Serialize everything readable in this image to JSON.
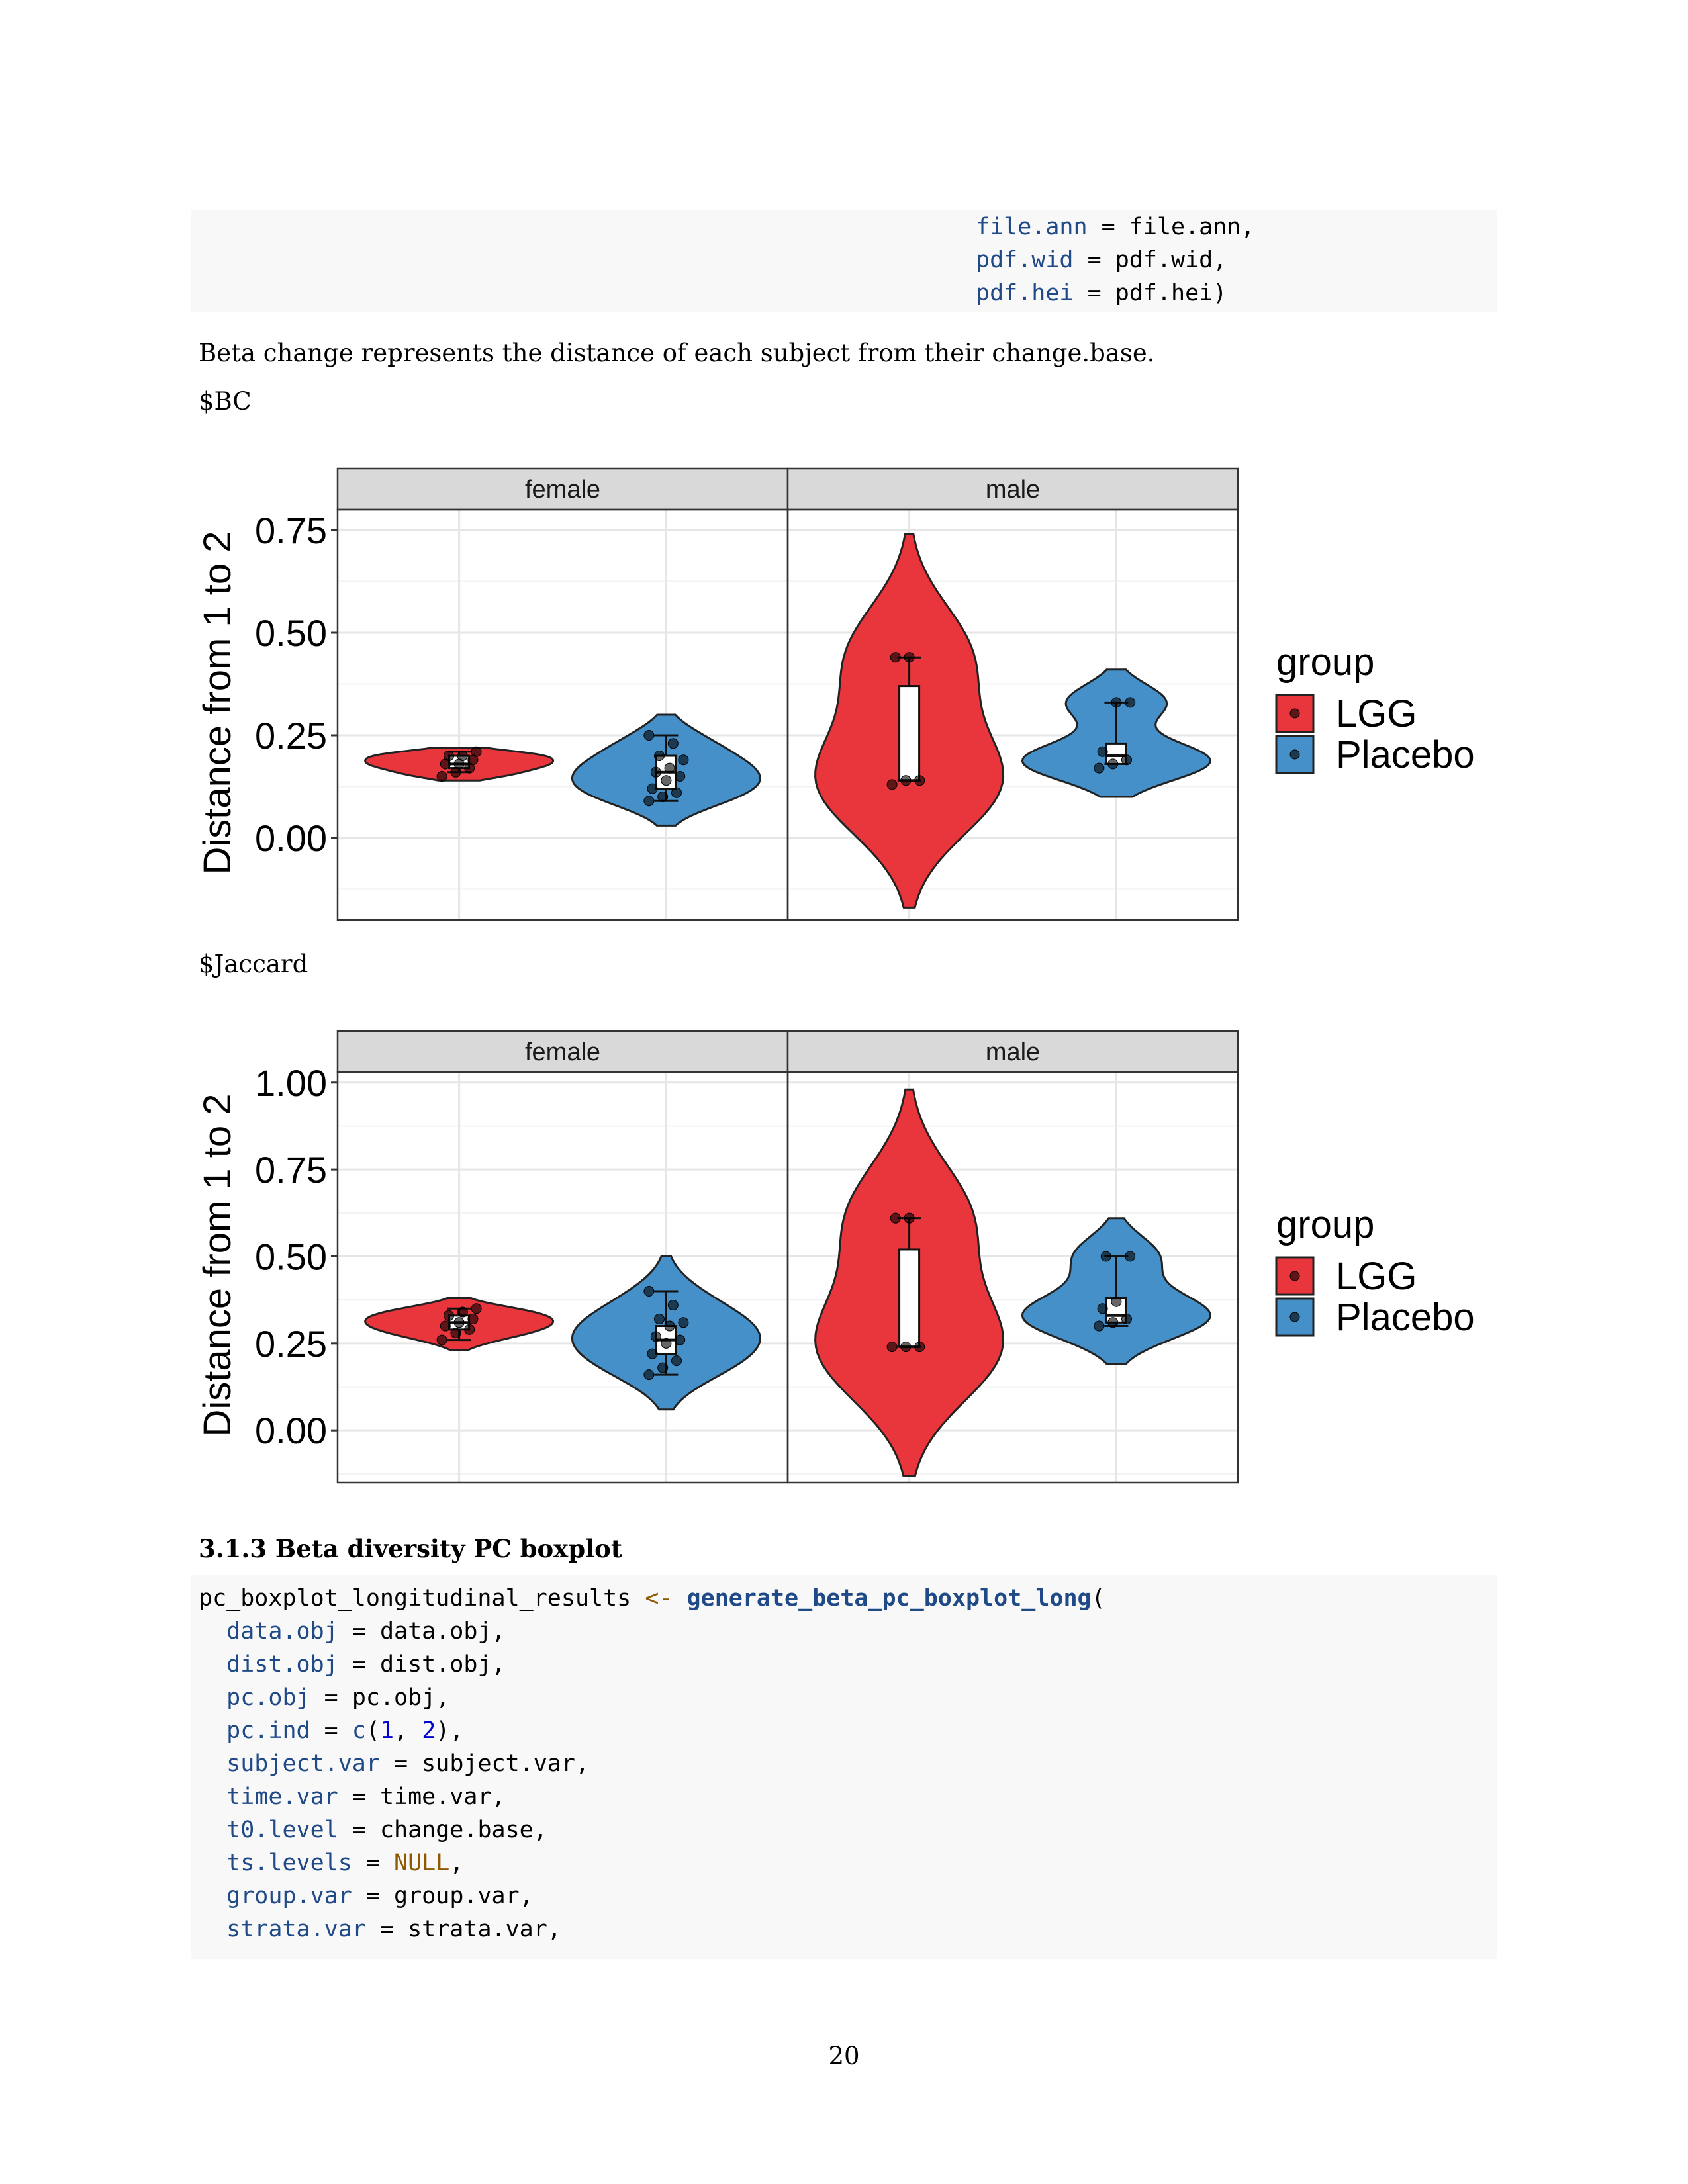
{
  "code_top": {
    "lines": [
      {
        "arg": "file.ann",
        "value": "file.ann,"
      },
      {
        "arg": "pdf.wid",
        "value": "pdf.wid,"
      },
      {
        "arg": "pdf.hei",
        "value": "pdf.hei)"
      }
    ]
  },
  "paragraph": "Beta change represents the distance of each subject from their change.base.",
  "label_bc": "$BC",
  "label_jaccard": "$Jaccard",
  "section_heading": "3.1.3 Beta diversity PC boxplot",
  "code_bottom": {
    "first_line": {
      "name": "pc_boxplot_longitudinal_results",
      "assign": "<-",
      "fn": "generate_beta_pc_boxplot_long",
      "paren": "("
    },
    "lines": [
      {
        "arg": "data.obj",
        "value": "data.obj,"
      },
      {
        "arg": "dist.obj",
        "value": "dist.obj,"
      },
      {
        "arg": "pc.obj",
        "value": "pc.obj,"
      },
      {
        "arg": "pc.ind",
        "value_parts": [
          {
            "t": "c",
            "c": "arg"
          },
          {
            "t": "(",
            "c": ""
          },
          {
            "t": "1",
            "c": "num"
          },
          {
            "t": ", ",
            "c": ""
          },
          {
            "t": "2",
            "c": "num"
          },
          {
            "t": "),",
            "c": ""
          }
        ]
      },
      {
        "arg": "subject.var",
        "value": "subject.var,"
      },
      {
        "arg": "time.var",
        "value": "time.var,"
      },
      {
        "arg": "t0.level",
        "value": "change.base,"
      },
      {
        "arg": "ts.levels",
        "value_parts": [
          {
            "t": "NULL",
            "c": "nul"
          },
          {
            "t": ",",
            "c": ""
          }
        ]
      },
      {
        "arg": "group.var",
        "value": "group.var,"
      },
      {
        "arg": "strata.var",
        "value": "strata.var,"
      }
    ]
  },
  "page_number": "20",
  "chart_data": [
    {
      "type": "violin",
      "ylabel": "Distance from 1 to 2",
      "ylim": [
        -0.2,
        0.8
      ],
      "yticks": [
        "0.00",
        "0.25",
        "0.50",
        "0.75"
      ],
      "ytick_values": [
        0,
        0.25,
        0.5,
        0.75
      ],
      "facets": [
        "female",
        "male"
      ],
      "legend": {
        "title": "group",
        "entries": [
          {
            "name": "LGG",
            "color": "#e41a1c"
          },
          {
            "name": "Placebo",
            "color": "#377eb8"
          }
        ],
        "position": "right"
      },
      "grid": true,
      "panels": [
        {
          "facet": "female",
          "groups": [
            {
              "group": "LGG",
              "color": "#e41a1c",
              "violin_range": [
                0.14,
                0.22
              ],
              "box": [
                0.17,
                0.18,
                0.2
              ],
              "whisker": [
                0.16,
                0.21
              ],
              "points": [
                0.15,
                0.16,
                0.17,
                0.18,
                0.18,
                0.19,
                0.2,
                0.2,
                0.21
              ]
            },
            {
              "group": "Placebo",
              "color": "#377eb8",
              "violin_range": [
                0.03,
                0.3
              ],
              "box": [
                0.12,
                0.16,
                0.2
              ],
              "whisker": [
                0.09,
                0.25
              ],
              "points": [
                0.09,
                0.1,
                0.11,
                0.12,
                0.14,
                0.15,
                0.16,
                0.17,
                0.19,
                0.2,
                0.23,
                0.25
              ]
            }
          ]
        },
        {
          "facet": "male",
          "groups": [
            {
              "group": "LGG",
              "color": "#e41a1c",
              "violin_range": [
                -0.17,
                0.74
              ],
              "box": [
                0.14,
                0.14,
                0.37
              ],
              "whisker": [
                0.14,
                0.44
              ],
              "points": [
                0.13,
                0.14,
                0.14,
                0.44,
                0.44
              ]
            },
            {
              "group": "Placebo",
              "color": "#377eb8",
              "violin_range": [
                0.1,
                0.41
              ],
              "box": [
                0.18,
                0.2,
                0.23
              ],
              "whisker": [
                0.18,
                0.33
              ],
              "points": [
                0.17,
                0.18,
                0.19,
                0.21,
                0.33,
                0.33
              ]
            }
          ]
        }
      ]
    },
    {
      "type": "violin",
      "ylabel": "Distance from 1 to 2",
      "ylim": [
        -0.15,
        1.03
      ],
      "yticks": [
        "0.00",
        "0.25",
        "0.50",
        "0.75",
        "1.00"
      ],
      "ytick_values": [
        0,
        0.25,
        0.5,
        0.75,
        1.0
      ],
      "facets": [
        "female",
        "male"
      ],
      "legend": {
        "title": "group",
        "entries": [
          {
            "name": "LGG",
            "color": "#e41a1c"
          },
          {
            "name": "Placebo",
            "color": "#377eb8"
          }
        ],
        "position": "right"
      },
      "grid": true,
      "panels": [
        {
          "facet": "female",
          "groups": [
            {
              "group": "LGG",
              "color": "#e41a1c",
              "violin_range": [
                0.23,
                0.38
              ],
              "box": [
                0.29,
                0.31,
                0.33
              ],
              "whisker": [
                0.26,
                0.35
              ],
              "points": [
                0.26,
                0.28,
                0.29,
                0.3,
                0.31,
                0.32,
                0.33,
                0.34,
                0.35
              ]
            },
            {
              "group": "Placebo",
              "color": "#377eb8",
              "violin_range": [
                0.06,
                0.5
              ],
              "box": [
                0.22,
                0.26,
                0.3
              ],
              "whisker": [
                0.16,
                0.4
              ],
              "points": [
                0.16,
                0.18,
                0.2,
                0.22,
                0.25,
                0.26,
                0.27,
                0.3,
                0.31,
                0.32,
                0.36,
                0.4
              ]
            }
          ]
        },
        {
          "facet": "male",
          "groups": [
            {
              "group": "LGG",
              "color": "#e41a1c",
              "violin_range": [
                -0.13,
                0.98
              ],
              "box": [
                0.24,
                0.24,
                0.52
              ],
              "whisker": [
                0.24,
                0.61
              ],
              "points": [
                0.24,
                0.24,
                0.24,
                0.61,
                0.61
              ]
            },
            {
              "group": "Placebo",
              "color": "#377eb8",
              "violin_range": [
                0.19,
                0.61
              ],
              "box": [
                0.31,
                0.33,
                0.38
              ],
              "whisker": [
                0.3,
                0.5
              ],
              "points": [
                0.3,
                0.31,
                0.32,
                0.35,
                0.37,
                0.5,
                0.5
              ]
            }
          ]
        }
      ]
    }
  ]
}
